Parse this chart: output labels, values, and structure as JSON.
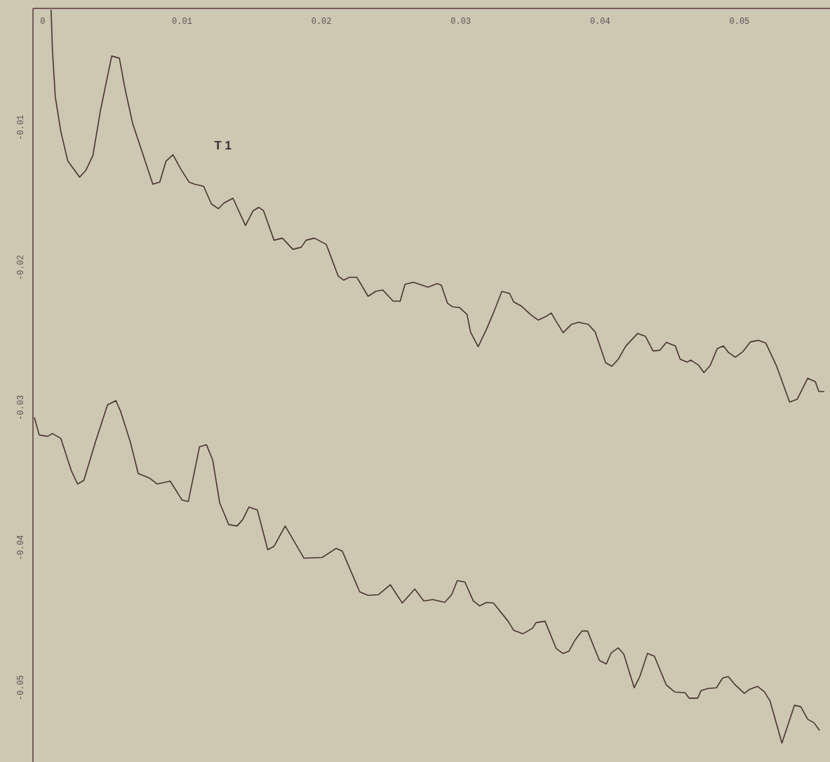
{
  "chart_data": {
    "type": "line",
    "xlim": [
      -0.0007,
      0.0565
    ],
    "ylim": [
      -0.0553,
      -0.0015
    ],
    "xticks": [
      0,
      0.01,
      0.02,
      0.03,
      0.04,
      0.05
    ],
    "yticks": [
      -0.01,
      -0.02,
      -0.03,
      -0.04,
      -0.05
    ],
    "grid": false,
    "legend": false,
    "marker": "none",
    "line_style": "solid",
    "series": [
      {
        "name": "T 1",
        "color": "#4a3430",
        "x": [
          0.0006,
          0.0007,
          0.0009,
          0.0013,
          0.0018,
          0.00265,
          0.0031,
          0.0036,
          0.00415,
          0.00495,
          0.0055,
          0.0059,
          0.00645,
          0.00715,
          0.0079,
          0.0084,
          0.00885,
          0.00935,
          0.0099,
          0.0105,
          0.0109,
          0.01155,
          0.0121,
          0.0126,
          0.013,
          0.01365,
          0.01455,
          0.0151,
          0.0155,
          0.01585,
          0.0166,
          0.0172,
          0.01795,
          0.01855,
          0.0189,
          0.0195,
          0.02035,
          0.0212,
          0.0216,
          0.022,
          0.02255,
          0.02335,
          0.0239,
          0.0244,
          0.02515,
          0.02565,
          0.026,
          0.0266,
          0.02765,
          0.0283,
          0.0286,
          0.02905,
          0.0294,
          0.0299,
          0.03045,
          0.0307,
          0.03125,
          0.03185,
          0.0324,
          0.03295,
          0.0335,
          0.0338,
          0.03435,
          0.035,
          0.03555,
          0.0361,
          0.0365,
          0.03685,
          0.03735,
          0.03795,
          0.03845,
          0.03915,
          0.03965,
          0.0404,
          0.04085,
          0.0413,
          0.04185,
          0.0427,
          0.04325,
          0.0438,
          0.0443,
          0.04475,
          0.0454,
          0.04575,
          0.04625,
          0.0465,
          0.04705,
          0.04745,
          0.0479,
          0.0484,
          0.04885,
          0.0492,
          0.0497,
          0.05025,
          0.0508,
          0.05135,
          0.0519,
          0.05265,
          0.0536,
          0.05415,
          0.0549,
          0.05545,
          0.0557,
          0.0561
        ],
        "values": [
          -0.0016,
          -0.00455,
          -0.0078,
          -0.0103,
          -0.0124,
          -0.01355,
          -0.01305,
          -0.012,
          -0.00875,
          -0.0049,
          -0.00505,
          -0.0072,
          -0.0097,
          -0.0118,
          -0.01405,
          -0.0139,
          -0.0124,
          -0.01195,
          -0.01295,
          -0.0139,
          -0.01405,
          -0.0142,
          -0.01545,
          -0.0158,
          -0.0154,
          -0.01505,
          -0.017,
          -0.01595,
          -0.0157,
          -0.01595,
          -0.01805,
          -0.0179,
          -0.0187,
          -0.01855,
          -0.01805,
          -0.0179,
          -0.01835,
          -0.0206,
          -0.0209,
          -0.0207,
          -0.0207,
          -0.02205,
          -0.0217,
          -0.0216,
          -0.0224,
          -0.0224,
          -0.0212,
          -0.02105,
          -0.0214,
          -0.02115,
          -0.02125,
          -0.02255,
          -0.0228,
          -0.02285,
          -0.02335,
          -0.0246,
          -0.02565,
          -0.0244,
          -0.0231,
          -0.0217,
          -0.02185,
          -0.02245,
          -0.02275,
          -0.02335,
          -0.02375,
          -0.0235,
          -0.02325,
          -0.02385,
          -0.02465,
          -0.02405,
          -0.0239,
          -0.02405,
          -0.0246,
          -0.0268,
          -0.02705,
          -0.02655,
          -0.0256,
          -0.0247,
          -0.0249,
          -0.02595,
          -0.0259,
          -0.02535,
          -0.0256,
          -0.02655,
          -0.02675,
          -0.0266,
          -0.02695,
          -0.0275,
          -0.027,
          -0.0258,
          -0.0256,
          -0.02605,
          -0.0264,
          -0.026,
          -0.0253,
          -0.0252,
          -0.0254,
          -0.027,
          -0.0296,
          -0.0294,
          -0.0279,
          -0.02815,
          -0.02885,
          -0.02885
        ]
      },
      {
        "color": "#4a3430",
        "x": [
          -0.0006,
          -0.00025,
          0.00035,
          0.0007,
          0.0013,
          0.00205,
          0.0025,
          0.00295,
          0.0038,
          0.00465,
          0.00525,
          0.0056,
          0.0063,
          0.00685,
          0.0077,
          0.0082,
          0.00915,
          0.01,
          0.01045,
          0.01125,
          0.01175,
          0.0122,
          0.0127,
          0.01335,
          0.01395,
          0.01435,
          0.0148,
          0.0154,
          0.01615,
          0.0166,
          0.0174,
          0.01875,
          0.02005,
          0.02105,
          0.0215,
          0.02275,
          0.02335,
          0.0241,
          0.02495,
          0.0258,
          0.0267,
          0.02735,
          0.028,
          0.02885,
          0.02935,
          0.02975,
          0.0303,
          0.0309,
          0.03135,
          0.03185,
          0.03235,
          0.0334,
          0.0338,
          0.03445,
          0.03515,
          0.0354,
          0.03605,
          0.03685,
          0.03735,
          0.03775,
          0.0382,
          0.0387,
          0.0391,
          0.03995,
          0.04045,
          0.0408,
          0.0413,
          0.0417,
          0.04245,
          0.04285,
          0.0434,
          0.0439,
          0.04475,
          0.04535,
          0.0461,
          0.0464,
          0.047,
          0.04725,
          0.04775,
          0.04835,
          0.0488,
          0.0492,
          0.0497,
          0.05035,
          0.05075,
          0.0513,
          0.0518,
          0.0522,
          0.05305,
          0.05395,
          0.0544,
          0.0549,
          0.05535,
          0.05575
        ],
        "values": [
          -0.0307,
          -0.03195,
          -0.03205,
          -0.03185,
          -0.0322,
          -0.0345,
          -0.03545,
          -0.0352,
          -0.0324,
          -0.0298,
          -0.0295,
          -0.0303,
          -0.0325,
          -0.0347,
          -0.03505,
          -0.03545,
          -0.03525,
          -0.0366,
          -0.0367,
          -0.0328,
          -0.03265,
          -0.03375,
          -0.0368,
          -0.03835,
          -0.03845,
          -0.038,
          -0.0371,
          -0.0373,
          -0.04015,
          -0.0399,
          -0.03845,
          -0.04075,
          -0.0407,
          -0.04005,
          -0.04025,
          -0.04315,
          -0.0434,
          -0.04335,
          -0.04265,
          -0.04395,
          -0.04295,
          -0.0438,
          -0.0437,
          -0.0439,
          -0.04335,
          -0.04235,
          -0.04245,
          -0.0438,
          -0.04415,
          -0.0439,
          -0.04395,
          -0.04525,
          -0.0459,
          -0.04615,
          -0.04575,
          -0.04535,
          -0.04525,
          -0.0472,
          -0.04755,
          -0.0474,
          -0.0466,
          -0.04595,
          -0.04595,
          -0.04805,
          -0.0483,
          -0.0475,
          -0.04715,
          -0.0476,
          -0.05,
          -0.0492,
          -0.04755,
          -0.04775,
          -0.0498,
          -0.0503,
          -0.05035,
          -0.05075,
          -0.05075,
          -0.0502,
          -0.05005,
          -0.05,
          -0.0493,
          -0.0492,
          -0.0498,
          -0.0504,
          -0.0501,
          -0.0499,
          -0.0503,
          -0.05095,
          -0.05395,
          -0.05125,
          -0.05135,
          -0.05225,
          -0.0525,
          -0.05305
        ]
      }
    ]
  }
}
